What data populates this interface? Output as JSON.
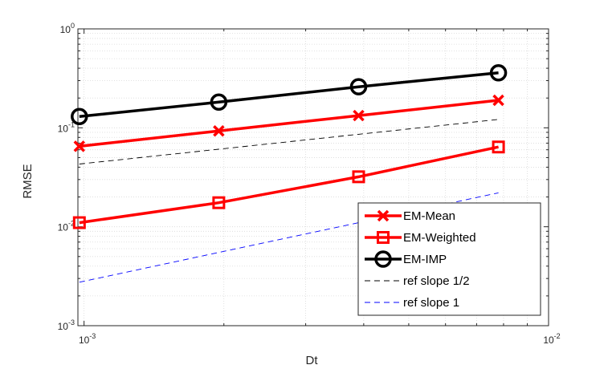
{
  "chart_data": {
    "type": "line",
    "xlabel": "Dt",
    "ylabel": "RMSE",
    "x_scale": "log",
    "y_scale": "log",
    "xlim": [
      0.00097,
      0.01
    ],
    "ylim": [
      0.001,
      1
    ],
    "x_ticks": [
      {
        "value": 0.001,
        "base": "10",
        "exp": "-3"
      },
      {
        "value": 0.01,
        "base": "10",
        "exp": "-2"
      }
    ],
    "y_ticks": [
      {
        "value": 0.001,
        "base": "10",
        "exp": "-3"
      },
      {
        "value": 0.01,
        "base": "10",
        "exp": "-2"
      },
      {
        "value": 0.1,
        "base": "10",
        "exp": "-1"
      },
      {
        "value": 1,
        "base": "10",
        "exp": "0"
      }
    ],
    "grid": true,
    "legend_position": "bottom-right",
    "x": [
      0.000977,
      0.00195,
      0.0039,
      0.0078
    ],
    "series": [
      {
        "name": "EM-Mean",
        "values": [
          0.065,
          0.093,
          0.133,
          0.19
        ],
        "color": "#ff0000",
        "marker": "x",
        "style": "solid"
      },
      {
        "name": "EM-Weighted",
        "values": [
          0.011,
          0.0175,
          0.032,
          0.064
        ],
        "color": "#ff0000",
        "marker": "square",
        "style": "solid"
      },
      {
        "name": "EM-IMP",
        "values": [
          0.13,
          0.182,
          0.26,
          0.36
        ],
        "color": "#000000",
        "marker": "circle",
        "style": "solid"
      },
      {
        "name": "ref slope 1/2",
        "values": [
          0.043,
          0.0608,
          0.086,
          0.1216
        ],
        "color": "#000000",
        "marker": "none",
        "style": "dashed"
      },
      {
        "name": "ref slope 1",
        "values": [
          0.00275,
          0.0055,
          0.011,
          0.022
        ],
        "color": "#0000ff",
        "marker": "none",
        "style": "dashed"
      }
    ]
  }
}
